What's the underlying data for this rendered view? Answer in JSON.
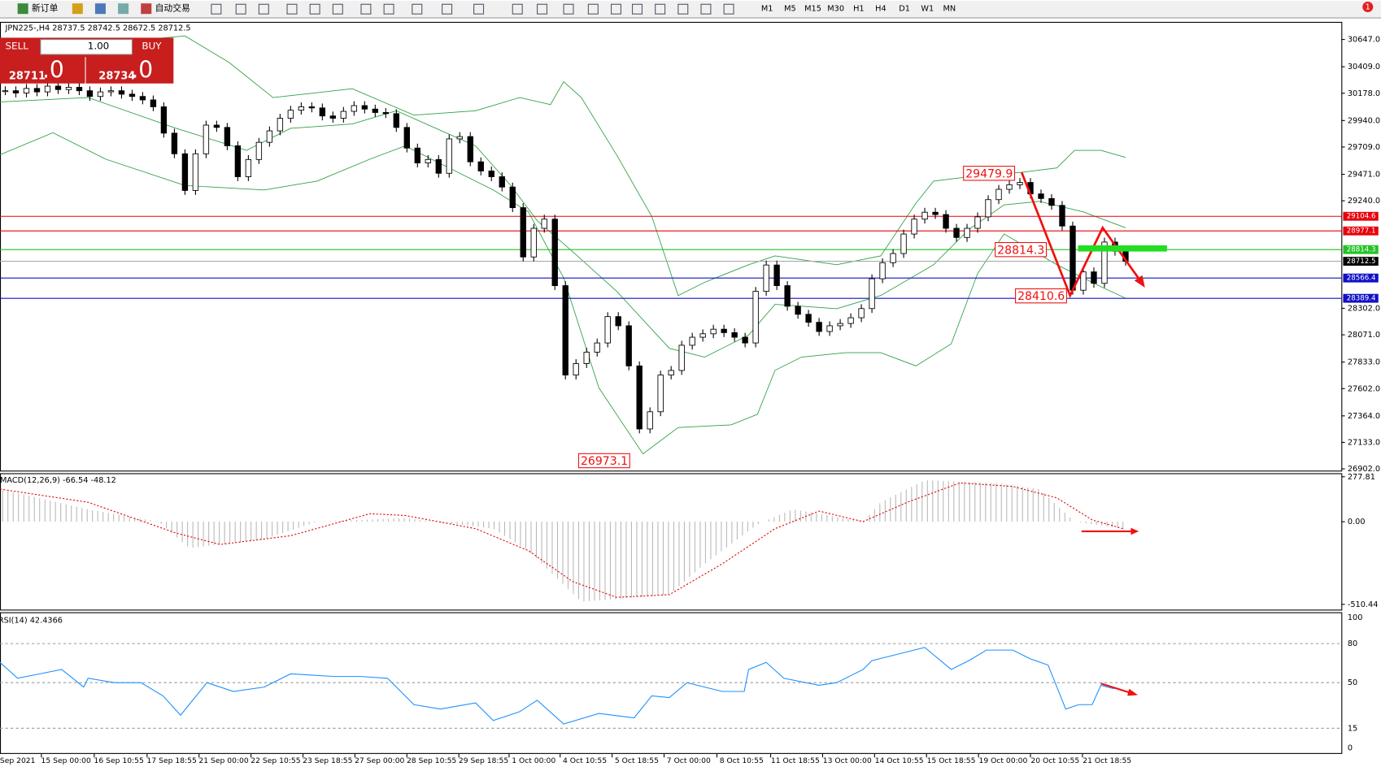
{
  "toolbar": {
    "new_order": "新订单",
    "auto_trading": "自动交易",
    "timeframes": [
      "M1",
      "M5",
      "M15",
      "M30",
      "H1",
      "H4",
      "D1",
      "W1",
      "MN"
    ],
    "alerts": "1"
  },
  "chart": {
    "header": "JPN225-,H4  28737.5 28742.5 28672.5 28712.5",
    "trade_panel": {
      "sell": "SELL",
      "lots": "1.00",
      "buy": "BUY",
      "bid_main": "28711",
      "bid_frac": ".0",
      "ask_main": "28734",
      "ask_frac": ".0"
    },
    "price_range": [
      26902,
      30647
    ],
    "price_ticks": [
      {
        "value": 30647,
        "label": "30647.0"
      },
      {
        "value": 30409,
        "label": "30409.0"
      },
      {
        "value": 30178,
        "label": "30178.0"
      },
      {
        "value": 29940,
        "label": "29940.0"
      },
      {
        "value": 29709,
        "label": "29709.0"
      },
      {
        "value": 29471,
        "label": "29471.0"
      },
      {
        "value": 29240,
        "label": "29240.0"
      },
      {
        "value": 28302,
        "label": "28302.0"
      },
      {
        "value": 28071,
        "label": "28071.0"
      },
      {
        "value": 27833,
        "label": "27833.0"
      },
      {
        "value": 27602,
        "label": "27602.0"
      },
      {
        "value": 27364,
        "label": "27364.0"
      },
      {
        "value": 27133,
        "label": "27133.0"
      },
      {
        "value": 26902,
        "label": "26902.0"
      }
    ],
    "levels": [
      {
        "value": 29104.6,
        "color": "#e8000b"
      },
      {
        "value": 28977.1,
        "color": "#e8000b"
      },
      {
        "value": 28814.3,
        "color": "#22c322"
      },
      {
        "value": 28712.5,
        "color": "#000000"
      },
      {
        "value": 28566.4,
        "color": "#1010c8"
      },
      {
        "value": 28389.4,
        "color": "#1010c8"
      }
    ],
    "closes": [
      30200,
      30180,
      30220,
      30190,
      30240,
      30210,
      30230,
      30200,
      30150,
      30190,
      30200,
      30170,
      30150,
      30120,
      30060,
      29830,
      29650,
      29330,
      29650,
      29900,
      29880,
      29720,
      29450,
      29600,
      29750,
      29850,
      29960,
      30030,
      30060,
      30050,
      29980,
      29960,
      30020,
      30070,
      30040,
      30010,
      30000,
      29880,
      29700,
      29570,
      29600,
      29480,
      29780,
      29800,
      29580,
      29500,
      29450,
      29360,
      29180,
      28750,
      29000,
      29080,
      28500,
      27720,
      27820,
      27920,
      28000,
      28230,
      28150,
      27800,
      27250,
      27400,
      27720,
      27760,
      27980,
      28050,
      28080,
      28120,
      28090,
      28050,
      28000,
      28450,
      28680,
      28500,
      28320,
      28250,
      28180,
      28100,
      28150,
      28170,
      28220,
      28300,
      28560,
      28700,
      28780,
      28950,
      29080,
      29140,
      29120,
      29000,
      28920,
      29000,
      29100,
      29250,
      29340,
      29380,
      29400,
      29300,
      29260,
      29200,
      29020,
      28460,
      28620,
      28520,
      28880,
      28800,
      28712.5
    ],
    "annotations": [
      29479.9,
      28814.3,
      28410.6,
      26973.1
    ],
    "dates": [
      "Sep 2021",
      "15 Sep 00:00",
      "16 Sep 10:55",
      "17 Sep 18:55",
      "21 Sep 00:00",
      "22 Sep 10:55",
      "23 Sep 18:55",
      "27 Sep 00:00",
      "28 Sep 10:55",
      "29 Sep 18:55",
      "1 Oct 00:00",
      "4 Oct 10:55",
      "5 Oct 18:55",
      "7 Oct 00:00",
      "8 Oct 10:55",
      "11 Oct 18:55",
      "13 Oct 00:00",
      "14 Oct 10:55",
      "15 Oct 18:55",
      "19 Oct 00:00",
      "20 Oct 10:55",
      "21 Oct 18:55"
    ]
  },
  "macd": {
    "label": "MACD(12,26,9) -66.54 -48.12",
    "range": [
      -510.44,
      277.81
    ],
    "ticks": [
      277.81,
      {
        "value": 0,
        "label": "0.00"
      },
      -510.44
    ]
  },
  "rsi": {
    "label": "RSI(14) 42.4366",
    "range": [
      0,
      100
    ],
    "ticks": [
      100,
      80,
      50,
      15,
      0
    ]
  }
}
